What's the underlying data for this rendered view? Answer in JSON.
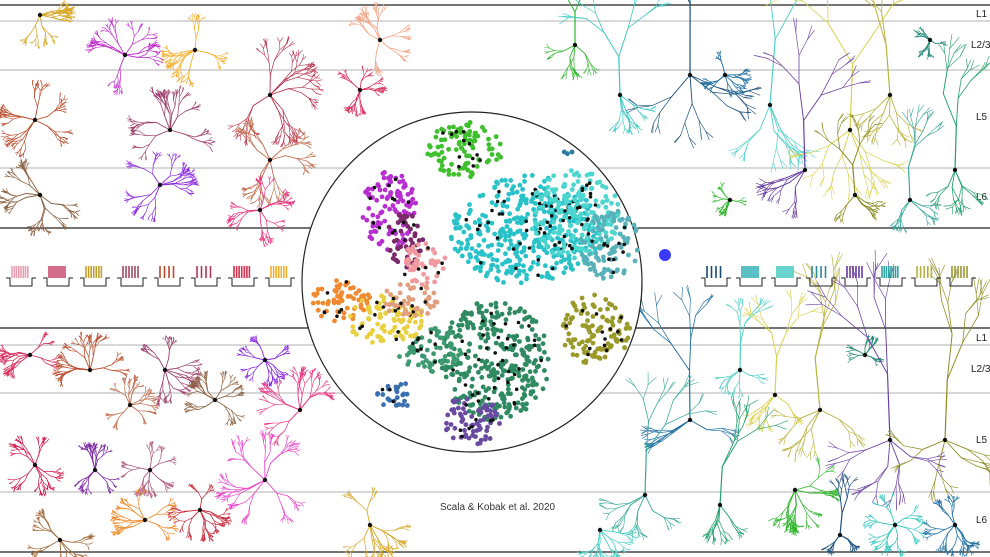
{
  "layers_top": [
    "L1",
    "L2/3",
    "L5",
    "L6"
  ],
  "layers_bottom": [
    "L1",
    "L2/3",
    "L5",
    "L6"
  ],
  "credit": "Scala & Kobak et al. 2020",
  "colors": {
    "excitatory": [
      "#2fb62b",
      "#1a4d7a",
      "#35c7c0",
      "#1f6fa0",
      "#4fd0c8",
      "#d9d04a",
      "#b8b23c",
      "#2a8a78",
      "#6a3fa0",
      "#8a8a20",
      "#3aa89a",
      "#22a06b"
    ],
    "inhibitory": [
      "#d6a82a",
      "#c02cc9",
      "#f2b132",
      "#b8324e",
      "#f4a78a",
      "#d6305e",
      "#b84a2a",
      "#9a3d6a",
      "#8a2ae0",
      "#c07050",
      "#8a6040",
      "#e83a84",
      "#d02050",
      "#7a2aa0",
      "#b06080",
      "#e844c8",
      "#c42a3a",
      "#f08a2a",
      "#a06a3a"
    ],
    "embedding_clusters": [
      "#3fbf2e",
      "#29c2c8",
      "#4dd6d0",
      "#58b0b8",
      "#b82fd0",
      "#7a2a6a",
      "#f09aa0",
      "#e0a080",
      "#f08a30",
      "#e8d040",
      "#2f8a62",
      "#3d9a70",
      "#6a4aa0",
      "#3a70b0",
      "#9a9a2a",
      "#3a3aff",
      "#2a7aa0"
    ],
    "ephys_trace": "#222222"
  },
  "ephys_left_colors": [
    "#e8a0b0",
    "#c84a70",
    "#c0a030",
    "#a04a60",
    "#b84a2a",
    "#b03a5a",
    "#d03050",
    "#f0b030"
  ],
  "ephys_right_colors": [
    "#1a4a70",
    "#30b0b8",
    "#40c8c0",
    "#2a8a9a",
    "#6a3a9a",
    "#30a0a0",
    "#b8b040",
    "#9a9a30"
  ]
}
